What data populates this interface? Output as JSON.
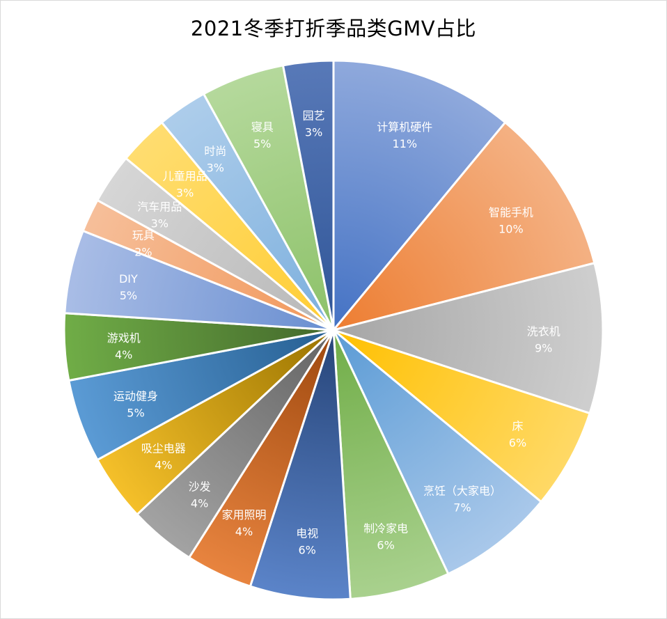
{
  "chart_data": {
    "type": "pie",
    "title": "2021冬季打折季品类GMV占比",
    "start_angle_deg": 0,
    "direction": "clockwise",
    "slices": [
      {
        "label": "计算机硬件",
        "value": 11,
        "pct_label": "11%",
        "color": "#4472C4",
        "color_light": "#8FA9DC"
      },
      {
        "label": "智能手机",
        "value": 10,
        "pct_label": "10%",
        "color": "#ED7D31",
        "color_light": "#F4B183"
      },
      {
        "label": "洗衣机",
        "value": 9,
        "pct_label": "9%",
        "color": "#A5A5A5",
        "color_light": "#CFCFCF"
      },
      {
        "label": "床",
        "value": 6,
        "pct_label": "6%",
        "color": "#FFC000",
        "color_light": "#FFD966"
      },
      {
        "label": "烹饪（大家电）",
        "value": 7,
        "pct_label": "7%",
        "color": "#5B9BD5",
        "color_light": "#A9C8EA"
      },
      {
        "label": "制冷家电",
        "value": 6,
        "pct_label": "6%",
        "color": "#70AD47",
        "color_light": "#A9D18E"
      },
      {
        "label": "电视",
        "value": 6,
        "pct_label": "6%",
        "color": "#264478",
        "color_light": "#5B84C9"
      },
      {
        "label": "家用照明",
        "value": 4,
        "pct_label": "4%",
        "color": "#9E480E",
        "color_light": "#E8843F"
      },
      {
        "label": "沙发",
        "value": 4,
        "pct_label": "4%",
        "color": "#636363",
        "color_light": "#A3A3A3"
      },
      {
        "label": "吸尘电器",
        "value": 4,
        "pct_label": "4%",
        "color": "#997300",
        "color_light": "#F5C02A"
      },
      {
        "label": "运动健身",
        "value": 5,
        "pct_label": "5%",
        "color": "#255E91",
        "color_light": "#5B9BD5"
      },
      {
        "label": "游戏机",
        "value": 4,
        "pct_label": "4%",
        "color": "#43682B",
        "color_light": "#70AD47"
      },
      {
        "label": "DIY",
        "value": 5,
        "pct_label": "5%",
        "color": "#698ED0",
        "color_light": "#A9BDE6"
      },
      {
        "label": "玩具",
        "value": 2,
        "pct_label": "2%",
        "color": "#F1975A",
        "color_light": "#F6BF9A"
      },
      {
        "label": "汽车用品",
        "value": 3,
        "pct_label": "3%",
        "color": "#B7B7B7",
        "color_light": "#D6D6D6"
      },
      {
        "label": "儿童用品",
        "value": 3,
        "pct_label": "3%",
        "color": "#FFCD33",
        "color_light": "#FFDD70"
      },
      {
        "label": "时尚",
        "value": 3,
        "pct_label": "3%",
        "color": "#7CAFDD",
        "color_light": "#ADCDEB"
      },
      {
        "label": "寝具",
        "value": 5,
        "pct_label": "5%",
        "color": "#8CC168",
        "color_light": "#B5D99C"
      },
      {
        "label": "园艺",
        "value": 3,
        "pct_label": "3%",
        "color": "#2F5597",
        "color_light": "#5879B8"
      }
    ]
  }
}
